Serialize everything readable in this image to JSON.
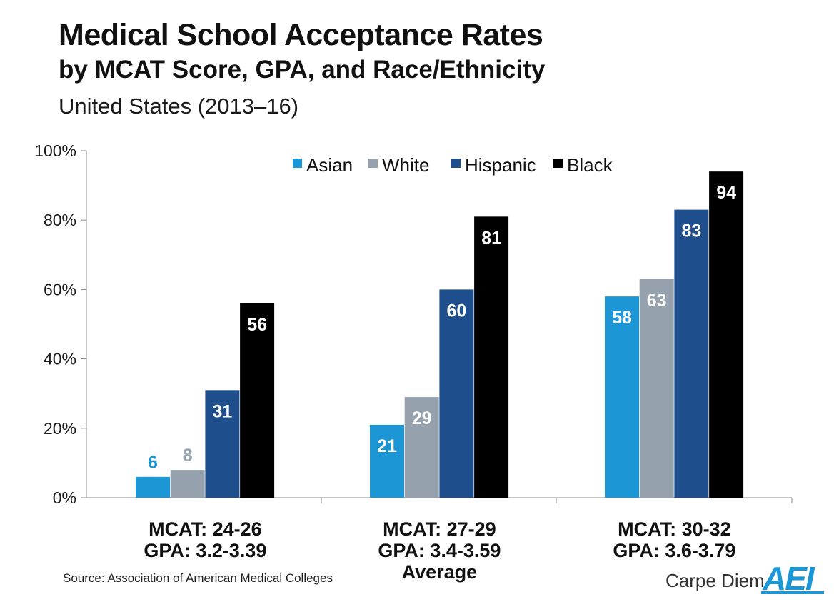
{
  "header": {
    "title": "Medical School Acceptance Rates",
    "subtitle": "by MCAT Score, GPA, and Race/Ethnicity",
    "subtitle2": "United States (2013–16)"
  },
  "footer": {
    "source": "Source: Association of American Medical Colleges",
    "brand": "Carpe Diem",
    "logo_text": "AEI"
  },
  "colors": {
    "Asian": "#1c96d4",
    "White": "#95a2ae",
    "Hispanic": "#1f4e8c",
    "Black": "#000000",
    "axis": "#888888",
    "label_light": "#ffffff",
    "logo": "#1c96d4"
  },
  "chart_data": {
    "type": "bar",
    "categories": [
      [
        "MCAT: 24-26",
        "GPA: 3.2-3.39"
      ],
      [
        "MCAT: 27-29",
        "GPA: 3.4-3.59",
        "Average"
      ],
      [
        "MCAT: 30-32",
        "GPA: 3.6-3.79"
      ]
    ],
    "series": [
      {
        "name": "Asian",
        "values": [
          6,
          21,
          58
        ]
      },
      {
        "name": "White",
        "values": [
          8,
          29,
          63
        ]
      },
      {
        "name": "Hispanic",
        "values": [
          31,
          60,
          83
        ]
      },
      {
        "name": "Black",
        "values": [
          56,
          81,
          94
        ]
      }
    ],
    "data_labels": true,
    "yticks": [
      "0%",
      "20%",
      "40%",
      "60%",
      "80%",
      "100%"
    ],
    "ylim": [
      0,
      100
    ],
    "grid": false,
    "legend": "top-center"
  }
}
